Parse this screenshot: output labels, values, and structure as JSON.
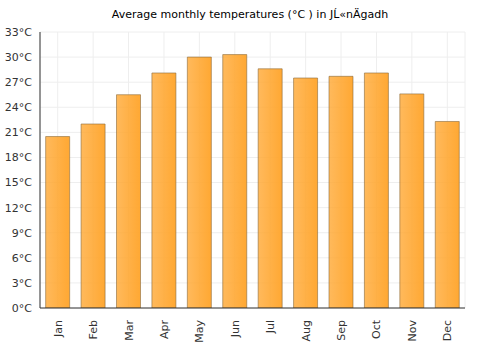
{
  "chart_data": {
    "type": "bar",
    "title": "Average monthly temperatures (°C ) in JĹ«nÄgadh",
    "categories": [
      "Jan",
      "Feb",
      "Mar",
      "Apr",
      "May",
      "Jun",
      "Jul",
      "Aug",
      "Sep",
      "Oct",
      "Nov",
      "Dec"
    ],
    "values": [
      20.5,
      22,
      25.5,
      28.1,
      30,
      30.3,
      28.6,
      27.5,
      27.7,
      28.1,
      25.6,
      22.3
    ],
    "color": "#ffa833",
    "ylim": [
      0,
      33
    ],
    "yticks": [
      {
        "value": 0,
        "label": "0°C"
      },
      {
        "value": 3,
        "label": "3°C"
      },
      {
        "value": 6,
        "label": "6°C"
      },
      {
        "value": 9,
        "label": "9°C"
      },
      {
        "value": 12,
        "label": "12°C"
      },
      {
        "value": 15,
        "label": "15°C"
      },
      {
        "value": 18,
        "label": "18°C"
      },
      {
        "value": 21,
        "label": "21°C"
      },
      {
        "value": 24,
        "label": "24°C"
      },
      {
        "value": 27,
        "label": "27°C"
      },
      {
        "value": 30,
        "label": "30°C"
      },
      {
        "value": 33,
        "label": "33°C"
      }
    ],
    "grid": true
  }
}
